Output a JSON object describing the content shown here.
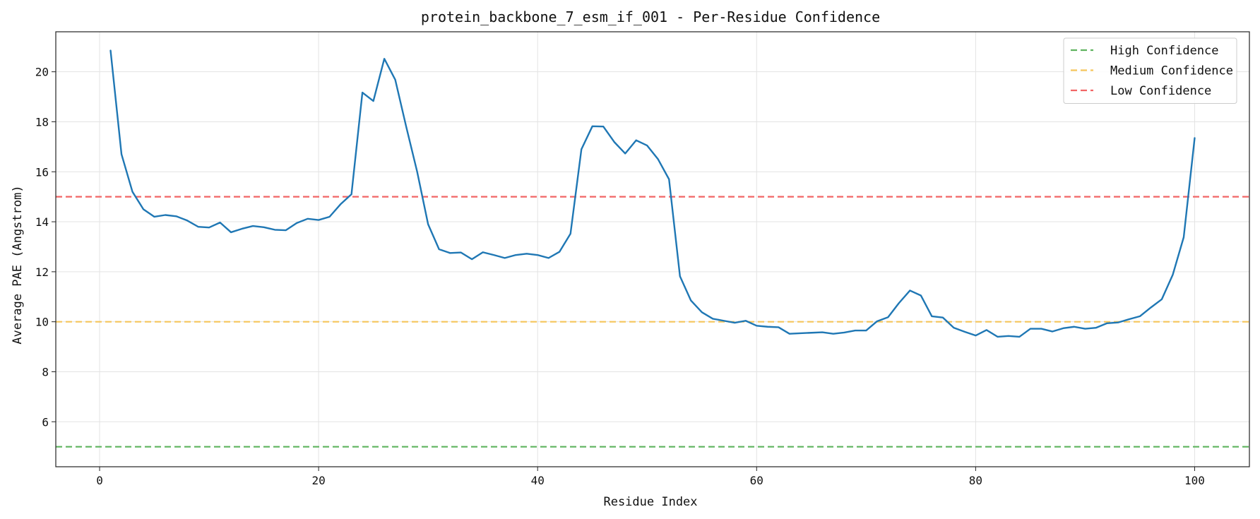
{
  "chart_data": {
    "type": "line",
    "title": "protein_backbone_7_esm_if_001 - Per-Residue Confidence",
    "xlabel": "Residue Index",
    "ylabel": "Average PAE (Angstrom)",
    "xlim": [
      -4,
      105
    ],
    "ylim": [
      4.2,
      21.6
    ],
    "xticks": [
      0,
      20,
      40,
      60,
      80,
      100
    ],
    "yticks": [
      6,
      8,
      10,
      12,
      14,
      16,
      18,
      20
    ],
    "grid": true,
    "legend_position": "top-right",
    "series": [
      {
        "color": "#1f77b4",
        "x": [
          1,
          2,
          3,
          4,
          5,
          6,
          7,
          8,
          9,
          10,
          11,
          12,
          13,
          14,
          15,
          16,
          17,
          18,
          19,
          20,
          21,
          22,
          23,
          24,
          25,
          26,
          27,
          28,
          29,
          30,
          31,
          32,
          33,
          34,
          35,
          36,
          37,
          38,
          39,
          40,
          41,
          42,
          43,
          44,
          45,
          46,
          47,
          48,
          49,
          50,
          51,
          52,
          53,
          54,
          55,
          56,
          57,
          58,
          59,
          60,
          61,
          62,
          63,
          64,
          65,
          66,
          67,
          68,
          69,
          70,
          71,
          72,
          73,
          74,
          75,
          76,
          77,
          78,
          79,
          80,
          81,
          82,
          83,
          84,
          85,
          86,
          87,
          88,
          89,
          90,
          91,
          92,
          93,
          94,
          95,
          96,
          97,
          98,
          99,
          100
        ],
        "values": [
          20.85,
          16.7,
          15.2,
          14.5,
          14.2,
          14.27,
          14.22,
          14.05,
          13.8,
          13.77,
          13.97,
          13.58,
          13.72,
          13.83,
          13.78,
          13.68,
          13.66,
          13.95,
          14.12,
          14.07,
          14.2,
          14.7,
          15.1,
          19.17,
          18.83,
          20.52,
          19.68,
          17.8,
          16.0,
          13.9,
          12.9,
          12.75,
          12.77,
          12.5,
          12.78,
          12.67,
          12.55,
          12.67,
          12.72,
          12.67,
          12.55,
          12.8,
          13.52,
          16.9,
          17.82,
          17.81,
          17.19,
          16.73,
          17.26,
          17.05,
          16.5,
          15.7,
          11.82,
          10.85,
          10.38,
          10.12,
          10.04,
          9.96,
          10.04,
          9.84,
          9.8,
          9.78,
          9.52,
          9.54,
          9.56,
          9.58,
          9.52,
          9.57,
          9.65,
          9.65,
          10.02,
          10.18,
          10.75,
          11.25,
          11.05,
          10.22,
          10.17,
          9.76,
          9.6,
          9.45,
          9.67,
          9.4,
          9.43,
          9.4,
          9.72,
          9.72,
          9.61,
          9.74,
          9.8,
          9.72,
          9.76,
          9.94,
          9.97,
          10.1,
          10.22,
          10.57,
          10.9,
          11.88,
          13.38,
          17.35
        ]
      }
    ],
    "thresholds": [
      {
        "name": "High Confidence",
        "value": 5,
        "color": "#5fb35f"
      },
      {
        "name": "Medium Confidence",
        "value": 10,
        "color": "#f5c55b"
      },
      {
        "name": "Low Confidence",
        "value": 15,
        "color": "#f26565"
      }
    ]
  }
}
